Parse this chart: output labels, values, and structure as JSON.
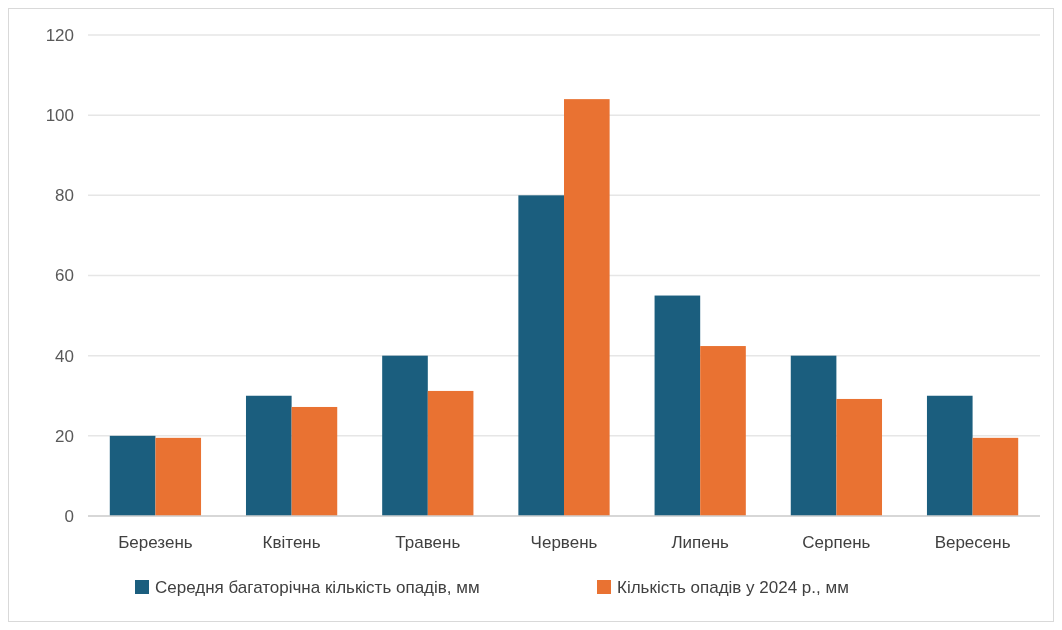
{
  "chart_data": {
    "type": "bar",
    "categories": [
      "Березень",
      "Квітень",
      "Травень",
      "Червень",
      "Липень",
      "Серпень",
      "Вересень"
    ],
    "series": [
      {
        "name": "Середня багаторічна кількість опадів, мм",
        "color": "#1b5e7e",
        "values": [
          20,
          30,
          40,
          80,
          55,
          40,
          30
        ]
      },
      {
        "name": "Кількість опадів у 2024 р., мм",
        "color": "#e97232",
        "values": [
          19.5,
          27.2,
          31.2,
          104,
          42.4,
          29.2,
          19.5
        ]
      }
    ],
    "ylim": [
      0,
      120
    ],
    "yticks": [
      0,
      20,
      40,
      60,
      80,
      100,
      120
    ],
    "grid": "y",
    "legend": "bottom"
  }
}
